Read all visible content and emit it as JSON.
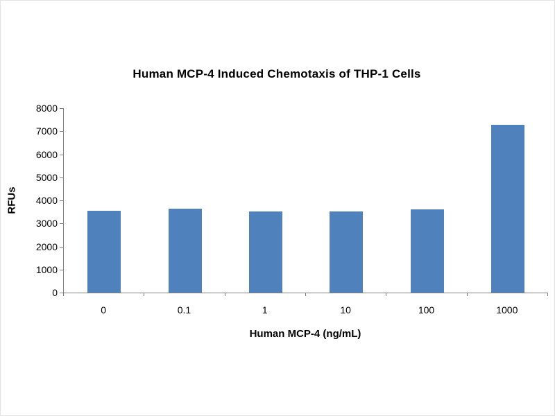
{
  "chart_data": {
    "type": "bar",
    "title": "Human MCP-4 Induced Chemotaxis of THP-1 Cells",
    "categories": [
      "0",
      "0.1",
      "1",
      "10",
      "100",
      "1000"
    ],
    "values": [
      3550,
      3650,
      3520,
      3520,
      3610,
      7280
    ],
    "xlabel": "Human MCP-4 (ng/mL)",
    "ylabel": "RFUs",
    "ylim": [
      0,
      8000
    ],
    "ytick_step": 1000,
    "bar_color": "#4f81bd",
    "axis_color": "#808080",
    "grid": false,
    "legend": false
  }
}
